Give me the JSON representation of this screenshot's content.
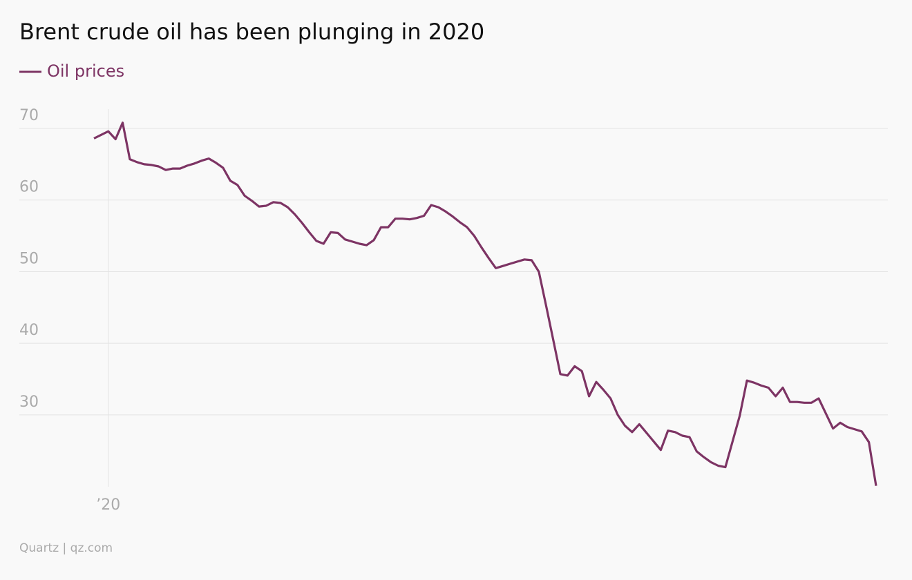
{
  "chart_data": {
    "type": "line",
    "title": "Brent crude oil has been plunging in 2020",
    "source": "Quartz | qz.com",
    "legend": "top-left",
    "grid": true,
    "categories": [
      null,
      null,
      "’20",
      null,
      null,
      null,
      null,
      null,
      null,
      null,
      null,
      null,
      null,
      null,
      null,
      null,
      null,
      null,
      null,
      null,
      null,
      null,
      null,
      null,
      null,
      null,
      null,
      null,
      null,
      null,
      null,
      null,
      null,
      null,
      null,
      null,
      null,
      null,
      null,
      null,
      null,
      null,
      null,
      null,
      null,
      null,
      null,
      null,
      null,
      null,
      null,
      null,
      null,
      null,
      null,
      null,
      null,
      null,
      null,
      null,
      null,
      null,
      null,
      null,
      null,
      null,
      null,
      null,
      null,
      null,
      null,
      null,
      null,
      null,
      null,
      null,
      null,
      null,
      null,
      null,
      null,
      null,
      null,
      null,
      null,
      null,
      null,
      null,
      null,
      null,
      null,
      null,
      null,
      null,
      null,
      null,
      null,
      null,
      null,
      null,
      null,
      null,
      null,
      null,
      null,
      null,
      null,
      null,
      null,
      null
    ],
    "series": [
      {
        "name": "Oil prices",
        "color": "#7d3464",
        "values": [
          68.6,
          69.1,
          69.6,
          68.5,
          70.8,
          65.7,
          65.3,
          65.0,
          64.9,
          64.7,
          64.2,
          64.4,
          64.4,
          64.8,
          65.1,
          65.5,
          65.8,
          65.2,
          64.5,
          62.7,
          62.1,
          60.6,
          59.9,
          59.1,
          59.2,
          59.7,
          59.6,
          59.0,
          58.0,
          56.8,
          55.5,
          54.3,
          53.9,
          55.5,
          55.4,
          54.5,
          54.2,
          53.9,
          53.7,
          54.4,
          56.2,
          56.2,
          57.4,
          57.4,
          57.3,
          57.5,
          57.8,
          59.3,
          59.0,
          58.4,
          57.7,
          56.9,
          56.2,
          55.0,
          53.4,
          51.9,
          50.5,
          50.8,
          51.1,
          51.4,
          51.7,
          51.6,
          50.0,
          45.3,
          40.5,
          35.7,
          35.5,
          36.8,
          36.1,
          32.6,
          34.6,
          33.5,
          32.3,
          30.0,
          28.5,
          27.6,
          28.7,
          27.5,
          26.3,
          25.1,
          27.8,
          27.6,
          27.1,
          26.9,
          24.9,
          24.1,
          23.4,
          22.9,
          22.7,
          26.3,
          29.9,
          34.8,
          34.5,
          34.1,
          33.8,
          32.6,
          33.8,
          31.8,
          31.8,
          31.7,
          31.7,
          32.3,
          30.2,
          28.1,
          28.9,
          28.3,
          28.0,
          27.7,
          26.2,
          20.1
        ]
      }
    ],
    "ylim": [
      19,
      72.7
    ],
    "yticks": [
      30,
      40,
      50,
      60,
      70
    ]
  }
}
